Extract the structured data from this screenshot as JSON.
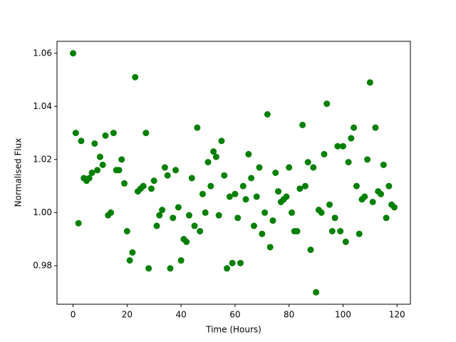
{
  "chart_data": {
    "type": "scatter",
    "xlabel": "Time (Hours)",
    "ylabel": "Normalised Flux",
    "x": [
      0,
      1,
      2,
      3,
      4,
      5,
      6,
      7,
      8,
      9,
      10,
      11,
      12,
      13,
      14,
      15,
      16,
      17,
      18,
      19,
      20,
      21,
      22,
      23,
      24,
      25,
      26,
      27,
      28,
      29,
      30,
      31,
      32,
      33,
      34,
      35,
      36,
      37,
      38,
      39,
      40,
      41,
      42,
      43,
      44,
      45,
      46,
      47,
      48,
      49,
      50,
      51,
      52,
      53,
      54,
      55,
      56,
      57,
      58,
      59,
      60,
      61,
      62,
      63,
      64,
      65,
      66,
      67,
      68,
      69,
      70,
      71,
      72,
      73,
      74,
      75,
      76,
      77,
      78,
      79,
      80,
      81,
      82,
      83,
      84,
      85,
      86,
      87,
      88,
      89,
      90,
      91,
      92,
      93,
      94,
      95,
      96,
      97,
      98,
      99,
      100,
      101,
      102,
      103,
      104,
      105,
      106,
      107,
      108,
      109,
      110,
      111,
      112,
      113,
      114,
      115,
      116,
      117,
      118,
      119
    ],
    "series": [
      {
        "name": "flux",
        "color": "#008000",
        "values": [
          1.06,
          1.03,
          0.996,
          1.027,
          1.013,
          1.012,
          1.013,
          1.015,
          1.026,
          1.016,
          1.021,
          1.018,
          1.029,
          0.999,
          1.0,
          1.03,
          1.016,
          1.016,
          1.02,
          1.011,
          0.993,
          0.982,
          0.985,
          1.051,
          1.008,
          1.009,
          1.01,
          1.03,
          0.979,
          1.009,
          1.012,
          0.995,
          0.999,
          1.001,
          1.017,
          1.014,
          0.979,
          0.998,
          1.016,
          1.002,
          0.982,
          0.99,
          0.989,
          0.999,
          1.013,
          0.995,
          1.032,
          0.993,
          1.007,
          1.0,
          1.019,
          1.01,
          1.023,
          1.021,
          0.999,
          1.027,
          1.014,
          0.979,
          1.006,
          0.981,
          1.007,
          0.998,
          0.981,
          1.01,
          1.005,
          1.022,
          1.013,
          0.995,
          1.006,
          1.017,
          0.992,
          1.0,
          1.037,
          0.987,
          0.997,
          1.015,
          1.008,
          1.004,
          1.005,
          1.006,
          1.017,
          1.0,
          0.993,
          0.993,
          1.009,
          1.033,
          1.01,
          1.019,
          0.986,
          1.017,
          0.97,
          1.001,
          1.0,
          1.022,
          1.041,
          1.003,
          0.993,
          0.998,
          1.025,
          0.993,
          1.025,
          0.989,
          1.019,
          1.028,
          1.032,
          1.01,
          0.992,
          1.005,
          1.006,
          1.02,
          1.049,
          1.004,
          1.032,
          1.008,
          1.007,
          1.018,
          0.998,
          1.01,
          1.003,
          1.002
        ]
      }
    ],
    "xlim": [
      -5.95,
      124.95
    ],
    "xticks": [
      0,
      20,
      40,
      60,
      80,
      100,
      120
    ],
    "ylim": [
      0.9655,
      1.0645
    ],
    "yticks": [
      0.98,
      {
        "value": 1,
        "label": "1.00"
      },
      1.02,
      1.04,
      1.06
    ]
  }
}
